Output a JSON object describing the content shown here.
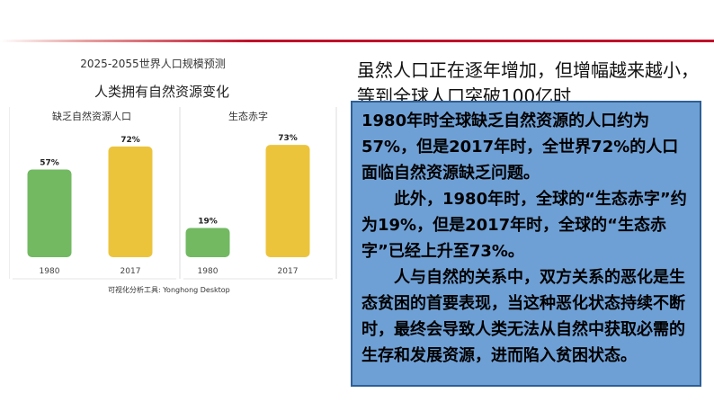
{
  "chart_data": {
    "type": "bar",
    "title": "2025-2055世界人口规模预测",
    "subtitle": "人类拥有自然资源变化",
    "source": "可视化分析工具: Yonghong Desktop",
    "ylim": [
      0,
      100
    ],
    "grid": false,
    "panels": [
      {
        "title": "缺乏自然资源人口",
        "categories": [
          "1980",
          "2017"
        ],
        "values": [
          57,
          72
        ],
        "labels": [
          "57%",
          "72%"
        ],
        "colors": [
          "#72b962",
          "#ecc43c"
        ]
      },
      {
        "title": "生态赤字",
        "categories": [
          "1980",
          "2017"
        ],
        "values": [
          19,
          73
        ],
        "labels": [
          "19%",
          "73%"
        ],
        "colors": [
          "#72b962",
          "#ecc43c"
        ]
      }
    ]
  },
  "headline": "虽然人口正在逐年增加，但增幅越来越小，等到全球人口突破100亿时",
  "info": {
    "p1": "1980年时全球缺乏自然资源的人口约为57%，但是2017年时，全世界72%的人口面临自然资源缺乏问题。",
    "p2": "此外，1980年时，全球的“生态赤字”约为19%，但是2017年时，全球的“生态赤字”已经上升至73%。",
    "p3": "人与自然的关系中，双方关系的恶化是生态贫困的首要表现，当这种恶化状态持续不断时，最终会导致人类无法从自然中获取必需的生存和发展资源，进而陷入贫困状态。"
  },
  "colors": {
    "accent_line": "#c0102a",
    "box_fill": "#6fa0d5",
    "box_border": "#2e5f96"
  }
}
